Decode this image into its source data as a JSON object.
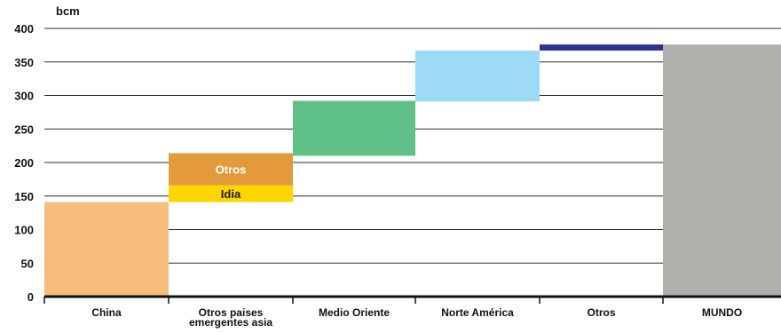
{
  "chart_data": {
    "type": "bar",
    "subtype": "waterfall",
    "ylabel": "bcm",
    "ylim": [
      0,
      400
    ],
    "yticks": [
      0,
      50,
      100,
      150,
      200,
      250,
      300,
      350,
      400
    ],
    "grid": true,
    "categories": [
      "China",
      "Otros paises emergentes asia",
      "Medio Oriente",
      "Norte América",
      "Otros",
      "MUNDO"
    ],
    "category_lines": [
      [
        "China"
      ],
      [
        "Otros paises",
        "emergentes asia"
      ],
      [
        "Medio Oriente"
      ],
      [
        "Norte América"
      ],
      [
        "Otros"
      ],
      [
        "MUNDO"
      ]
    ],
    "segments": [
      {
        "category": "China",
        "start": 0,
        "end": 141,
        "color": "#F8BC7C",
        "label": ""
      },
      {
        "category": "Otros paises emergentes asia",
        "start": 141,
        "end": 166,
        "color": "#FFD500",
        "label": "Idia",
        "label_color": "#1a1a1a"
      },
      {
        "category": "Otros paises emergentes asia",
        "start": 166,
        "end": 214,
        "color": "#E39A3A",
        "label": "Otros",
        "label_color": "#ffffff"
      },
      {
        "category": "Medio Oriente",
        "start": 210,
        "end": 292,
        "color": "#60C188",
        "label": ""
      },
      {
        "category": "Norte América",
        "start": 291,
        "end": 367,
        "color": "#9DDAF7",
        "label": ""
      },
      {
        "category": "Otros",
        "start": 367,
        "end": 376,
        "color": "#2E3192",
        "label": ""
      },
      {
        "category": "MUNDO",
        "start": 0,
        "end": 376,
        "color": "#B1AFAC",
        "label": ""
      }
    ]
  }
}
